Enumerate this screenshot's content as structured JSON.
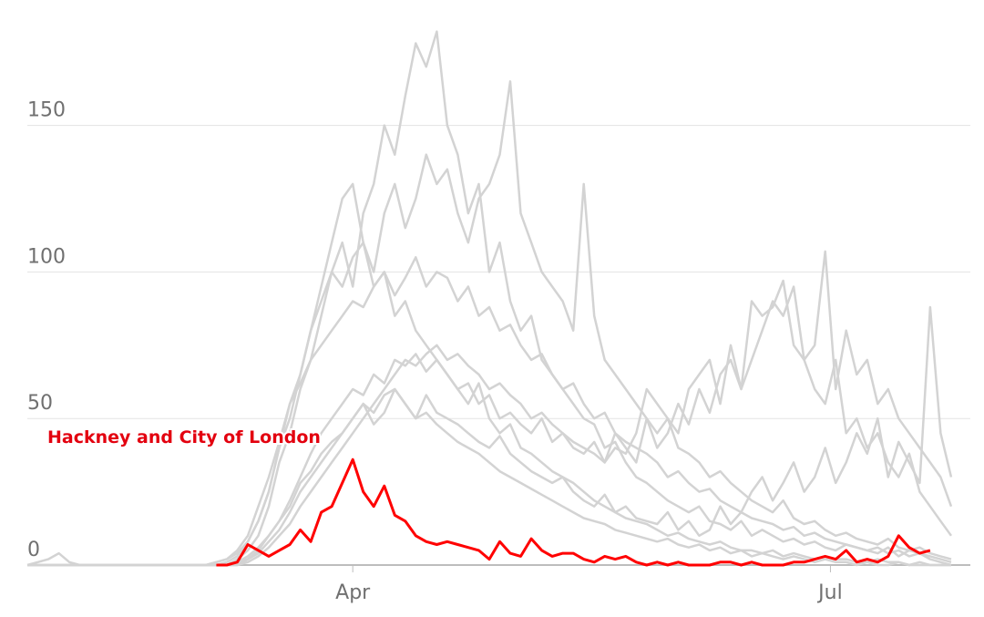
{
  "chart_data": {
    "type": "line",
    "x": [
      0,
      2,
      4,
      6,
      8,
      10,
      12,
      14,
      16,
      18,
      20,
      22,
      24,
      26,
      28,
      30,
      32,
      34,
      36,
      38,
      40,
      42,
      44,
      46,
      48,
      50,
      52,
      54,
      56,
      58,
      60,
      62,
      64,
      66,
      68,
      70,
      72,
      74,
      76,
      78,
      80,
      82,
      84,
      86,
      88,
      90,
      92,
      94,
      96,
      98,
      100,
      102,
      104,
      106,
      108,
      110,
      112,
      114,
      116,
      118,
      120,
      122,
      124,
      126,
      128,
      130,
      132,
      134,
      136,
      138,
      140,
      142,
      144,
      146,
      148,
      150,
      152,
      154,
      156,
      158,
      160,
      162,
      164,
      166,
      168,
      170,
      172,
      174,
      176
    ],
    "xlim": [
      0,
      180
    ],
    "xticks": [
      {
        "value": 62,
        "label": "Apr"
      },
      {
        "value": 153,
        "label": "Jul"
      }
    ],
    "ylim": [
      0,
      185
    ],
    "yticks": [
      0,
      50,
      100,
      150
    ],
    "grid": true,
    "series": [
      {
        "color": "#d3d3d3",
        "values": [
          0,
          0,
          0,
          0,
          0,
          0,
          0,
          0,
          0,
          0,
          0,
          0,
          0,
          0,
          0,
          0,
          0,
          0,
          0,
          0,
          2,
          5,
          10,
          20,
          35,
          45,
          60,
          70,
          85,
          100,
          110,
          95,
          120,
          130,
          150,
          140,
          160,
          178,
          170,
          182,
          150,
          140,
          120,
          130,
          100,
          110,
          90,
          80,
          85,
          70,
          65,
          60,
          55,
          50,
          48,
          40,
          42,
          35,
          30,
          28,
          25,
          22,
          20,
          18,
          20,
          15,
          14,
          12,
          15,
          10,
          12,
          10,
          8,
          9,
          7,
          8,
          6,
          5,
          7,
          6,
          5,
          4,
          6,
          3,
          5,
          4,
          3,
          2,
          1
        ]
      },
      {
        "color": "#d3d3d3",
        "values": [
          0,
          0,
          0,
          0,
          0,
          0,
          0,
          0,
          0,
          0,
          0,
          0,
          0,
          0,
          0,
          0,
          0,
          0,
          0,
          1,
          3,
          8,
          15,
          25,
          40,
          50,
          65,
          80,
          90,
          100,
          95,
          105,
          110,
          100,
          120,
          130,
          115,
          125,
          140,
          130,
          135,
          120,
          110,
          125,
          130,
          140,
          165,
          120,
          110,
          100,
          95,
          90,
          80,
          130,
          85,
          70,
          65,
          60,
          55,
          50,
          45,
          50,
          40,
          38,
          35,
          30,
          32,
          28,
          25,
          22,
          20,
          18,
          22,
          16,
          14,
          15,
          12,
          10,
          11,
          9,
          8,
          7,
          9,
          6,
          5,
          6,
          4,
          3,
          2
        ]
      },
      {
        "color": "#d3d3d3",
        "values": [
          0,
          0,
          0,
          0,
          0,
          0,
          0,
          0,
          0,
          0,
          0,
          0,
          0,
          0,
          0,
          0,
          0,
          0,
          0,
          0,
          1,
          3,
          6,
          10,
          15,
          22,
          30,
          38,
          45,
          50,
          55,
          60,
          58,
          65,
          62,
          70,
          68,
          72,
          66,
          70,
          65,
          60,
          62,
          55,
          58,
          50,
          52,
          48,
          45,
          50,
          42,
          45,
          40,
          38,
          42,
          35,
          40,
          38,
          45,
          60,
          55,
          50,
          45,
          60,
          65,
          70,
          55,
          75,
          60,
          70,
          80,
          90,
          85,
          95,
          70,
          75,
          107,
          60,
          80,
          65,
          70,
          55,
          60,
          50,
          45,
          40,
          35,
          30,
          20
        ]
      },
      {
        "color": "#d3d3d3",
        "values": [
          0,
          0,
          0,
          0,
          0,
          0,
          0,
          0,
          0,
          0,
          0,
          0,
          0,
          0,
          0,
          0,
          0,
          0,
          0,
          0,
          0,
          2,
          4,
          8,
          12,
          18,
          25,
          30,
          35,
          40,
          45,
          50,
          55,
          48,
          52,
          60,
          55,
          50,
          58,
          52,
          50,
          48,
          45,
          42,
          40,
          44,
          38,
          35,
          32,
          30,
          28,
          30,
          25,
          22,
          20,
          24,
          18,
          20,
          16,
          15,
          14,
          18,
          12,
          15,
          10,
          12,
          20,
          14,
          18,
          25,
          30,
          22,
          28,
          35,
          25,
          30,
          40,
          28,
          35,
          45,
          38,
          50,
          30,
          42,
          35,
          28,
          88,
          45,
          30
        ]
      },
      {
        "color": "#d3d3d3",
        "values": [
          0,
          1,
          2,
          4,
          1,
          0,
          0,
          0,
          0,
          0,
          0,
          0,
          0,
          0,
          0,
          0,
          0,
          0,
          1,
          2,
          4,
          8,
          15,
          25,
          40,
          55,
          65,
          80,
          95,
          110,
          125,
          130,
          110,
          95,
          100,
          85,
          90,
          80,
          75,
          70,
          65,
          60,
          55,
          62,
          50,
          45,
          48,
          40,
          38,
          35,
          32,
          30,
          28,
          25,
          22,
          20,
          18,
          16,
          15,
          14,
          12,
          10,
          11,
          9,
          8,
          7,
          8,
          6,
          5,
          5,
          4,
          5,
          3,
          4,
          3,
          2,
          3,
          2,
          2,
          1,
          1,
          2,
          1,
          1,
          0,
          1,
          0,
          0,
          0
        ]
      },
      {
        "color": "#d3d3d3",
        "values": [
          0,
          0,
          0,
          0,
          0,
          0,
          0,
          0,
          0,
          0,
          0,
          0,
          0,
          0,
          0,
          0,
          0,
          0,
          1,
          2,
          5,
          10,
          20,
          30,
          42,
          55,
          62,
          70,
          75,
          80,
          85,
          90,
          88,
          95,
          100,
          92,
          98,
          105,
          95,
          100,
          98,
          90,
          95,
          85,
          88,
          80,
          82,
          75,
          70,
          72,
          65,
          60,
          62,
          55,
          50,
          52,
          45,
          42,
          40,
          38,
          35,
          30,
          32,
          28,
          25,
          26,
          22,
          20,
          18,
          16,
          15,
          14,
          12,
          13,
          10,
          11,
          9,
          8,
          7,
          6,
          5,
          6,
          4,
          5,
          3,
          4,
          2,
          1,
          0
        ]
      },
      {
        "color": "#d3d3d3",
        "values": [
          0,
          0,
          0,
          0,
          0,
          0,
          0,
          0,
          0,
          0,
          0,
          0,
          0,
          0,
          0,
          0,
          0,
          0,
          0,
          0,
          1,
          2,
          5,
          10,
          15,
          20,
          28,
          32,
          38,
          42,
          45,
          50,
          55,
          52,
          58,
          60,
          55,
          50,
          52,
          48,
          45,
          42,
          40,
          38,
          35,
          32,
          30,
          28,
          26,
          24,
          22,
          20,
          18,
          16,
          15,
          14,
          12,
          11,
          10,
          9,
          8,
          9,
          7,
          6,
          7,
          5,
          6,
          4,
          5,
          3,
          4,
          3,
          2,
          3,
          2,
          1,
          2,
          1,
          1,
          0,
          1,
          0,
          0,
          1,
          0,
          0,
          0,
          0,
          0
        ]
      },
      {
        "color": "#d3d3d3",
        "values": [
          0,
          0,
          0,
          0,
          0,
          0,
          0,
          0,
          0,
          0,
          0,
          0,
          0,
          0,
          0,
          0,
          0,
          0,
          0,
          0,
          0,
          1,
          3,
          6,
          10,
          14,
          20,
          25,
          30,
          35,
          40,
          45,
          50,
          55,
          60,
          65,
          70,
          68,
          72,
          75,
          70,
          72,
          68,
          65,
          60,
          62,
          58,
          55,
          50,
          52,
          48,
          45,
          42,
          40,
          38,
          35,
          45,
          40,
          35,
          50,
          40,
          45,
          55,
          48,
          60,
          52,
          65,
          70,
          60,
          90,
          85,
          88,
          97,
          75,
          70,
          60,
          55,
          70,
          45,
          50,
          40,
          45,
          35,
          30,
          38,
          25,
          20,
          15,
          10
        ]
      },
      {
        "name": "Hackney and City of London",
        "color": "#ff0000",
        "values": [
          null,
          null,
          null,
          null,
          null,
          null,
          null,
          null,
          null,
          null,
          null,
          null,
          null,
          null,
          null,
          null,
          null,
          null,
          0,
          0,
          1,
          7,
          5,
          3,
          5,
          7,
          12,
          8,
          18,
          20,
          28,
          36,
          25,
          20,
          27,
          17,
          15,
          10,
          8,
          7,
          8,
          7,
          6,
          5,
          2,
          8,
          4,
          3,
          9,
          5,
          3,
          4,
          4,
          2,
          1,
          3,
          2,
          3,
          1,
          0,
          1,
          0,
          1,
          0,
          0,
          0,
          1,
          1,
          0,
          1,
          0,
          0,
          0,
          1,
          1,
          2,
          3,
          2,
          5,
          1,
          2,
          1,
          3,
          10,
          6,
          4,
          5,
          null,
          null
        ]
      }
    ]
  }
}
